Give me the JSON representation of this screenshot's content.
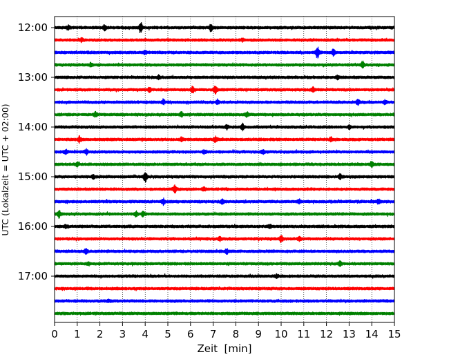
{
  "chart_data": {
    "type": "line",
    "title": "",
    "xlabel": "Zeit  [min]",
    "ylabel": "UTC (Lokalzeit = UTC + 02:00)",
    "xlim": [
      0,
      15
    ],
    "xticks": [
      "0",
      "1",
      "2",
      "3",
      "4",
      "5",
      "6",
      "7",
      "8",
      "9",
      "10",
      "11",
      "12",
      "13",
      "14",
      "15"
    ],
    "vertical_grid": "dotted, every minute",
    "hour_labels": [
      "12:00",
      "13:00",
      "14:00",
      "15:00",
      "16:00",
      "17:00"
    ],
    "trace_colors": [
      "#000000",
      "#ff0000",
      "#0000ff",
      "#008000"
    ],
    "series": [
      {
        "start": "12:00",
        "color": "#000000",
        "events": [
          {
            "t": 3.8,
            "amp": 0.8
          },
          {
            "t": 6.9,
            "amp": 0.6
          },
          {
            "t": 2.2,
            "amp": 0.35
          },
          {
            "t": 0.6,
            "amp": 0.3
          }
        ]
      },
      {
        "start": "12:15",
        "color": "#ff0000",
        "events": [
          {
            "t": 1.2,
            "amp": 0.25
          },
          {
            "t": 8.3,
            "amp": 0.2
          }
        ]
      },
      {
        "start": "12:30",
        "color": "#0000ff",
        "events": [
          {
            "t": 11.6,
            "amp": 0.9
          },
          {
            "t": 12.3,
            "amp": 0.45
          },
          {
            "t": 4.0,
            "amp": 0.2
          }
        ]
      },
      {
        "start": "12:45",
        "color": "#008000",
        "events": [
          {
            "t": 13.6,
            "amp": 0.5
          },
          {
            "t": 1.6,
            "amp": 0.25
          }
        ]
      },
      {
        "start": "13:00",
        "color": "#000000",
        "events": [
          {
            "t": 4.6,
            "amp": 0.25
          },
          {
            "t": 12.5,
            "amp": 0.25
          }
        ]
      },
      {
        "start": "13:15",
        "color": "#ff0000",
        "events": [
          {
            "t": 6.1,
            "amp": 0.5
          },
          {
            "t": 7.1,
            "amp": 0.6
          },
          {
            "t": 4.2,
            "amp": 0.35
          },
          {
            "t": 11.4,
            "amp": 0.35
          }
        ]
      },
      {
        "start": "13:30",
        "color": "#0000ff",
        "events": [
          {
            "t": 4.8,
            "amp": 0.35
          },
          {
            "t": 13.4,
            "amp": 0.35
          },
          {
            "t": 14.6,
            "amp": 0.3
          },
          {
            "t": 7.2,
            "amp": 0.25
          }
        ]
      },
      {
        "start": "13:45",
        "color": "#008000",
        "events": [
          {
            "t": 1.8,
            "amp": 0.35
          },
          {
            "t": 5.6,
            "amp": 0.35
          },
          {
            "t": 8.5,
            "amp": 0.3
          }
        ]
      },
      {
        "start": "14:00",
        "color": "#000000",
        "events": [
          {
            "t": 8.3,
            "amp": 0.45
          },
          {
            "t": 7.6,
            "amp": 0.25
          },
          {
            "t": 13.0,
            "amp": 0.25
          }
        ]
      },
      {
        "start": "14:15",
        "color": "#ff0000",
        "events": [
          {
            "t": 1.1,
            "amp": 0.45
          },
          {
            "t": 7.1,
            "amp": 0.45
          },
          {
            "t": 5.6,
            "amp": 0.3
          },
          {
            "t": 12.2,
            "amp": 0.3
          }
        ]
      },
      {
        "start": "14:30",
        "color": "#0000ff",
        "events": [
          {
            "t": 1.4,
            "amp": 0.35
          },
          {
            "t": 0.5,
            "amp": 0.35
          },
          {
            "t": 9.2,
            "amp": 0.3
          },
          {
            "t": 6.6,
            "amp": 0.25
          }
        ]
      },
      {
        "start": "14:45",
        "color": "#008000",
        "events": [
          {
            "t": 14.0,
            "amp": 0.35
          },
          {
            "t": 1.0,
            "amp": 0.25
          }
        ]
      },
      {
        "start": "15:00",
        "color": "#000000",
        "events": [
          {
            "t": 4.0,
            "amp": 0.85
          },
          {
            "t": 12.6,
            "amp": 0.35
          },
          {
            "t": 1.7,
            "amp": 0.25
          }
        ]
      },
      {
        "start": "15:15",
        "color": "#ff0000",
        "events": [
          {
            "t": 5.3,
            "amp": 0.6
          },
          {
            "t": 6.6,
            "amp": 0.25
          }
        ]
      },
      {
        "start": "15:30",
        "color": "#0000ff",
        "events": [
          {
            "t": 4.8,
            "amp": 0.4
          },
          {
            "t": 7.4,
            "amp": 0.35
          },
          {
            "t": 14.3,
            "amp": 0.35
          },
          {
            "t": 10.8,
            "amp": 0.25
          }
        ]
      },
      {
        "start": "15:45",
        "color": "#008000",
        "events": [
          {
            "t": 0.2,
            "amp": 0.5
          },
          {
            "t": 3.6,
            "amp": 0.35
          },
          {
            "t": 3.9,
            "amp": 0.3
          }
        ]
      },
      {
        "start": "16:00",
        "color": "#000000",
        "events": [
          {
            "t": 9.5,
            "amp": 0.25
          },
          {
            "t": 0.5,
            "amp": 0.2
          }
        ]
      },
      {
        "start": "16:15",
        "color": "#ff0000",
        "events": [
          {
            "t": 10.0,
            "amp": 0.5
          },
          {
            "t": 10.8,
            "amp": 0.3
          },
          {
            "t": 7.3,
            "amp": 0.25
          }
        ]
      },
      {
        "start": "16:30",
        "color": "#0000ff",
        "events": [
          {
            "t": 1.4,
            "amp": 0.35
          },
          {
            "t": 7.6,
            "amp": 0.3
          }
        ]
      },
      {
        "start": "16:45",
        "color": "#008000",
        "events": [
          {
            "t": 12.6,
            "amp": 0.3
          },
          {
            "t": 1.5,
            "amp": 0.2
          }
        ]
      },
      {
        "start": "17:00",
        "color": "#000000",
        "events": [
          {
            "t": 9.8,
            "amp": 0.2
          }
        ]
      },
      {
        "start": "17:15",
        "color": "#ff0000",
        "events": []
      },
      {
        "start": "17:30",
        "color": "#0000ff",
        "events": [
          {
            "t": 2.4,
            "amp": 0.15
          }
        ]
      },
      {
        "start": "17:45",
        "color": "#008000",
        "events": []
      }
    ]
  }
}
